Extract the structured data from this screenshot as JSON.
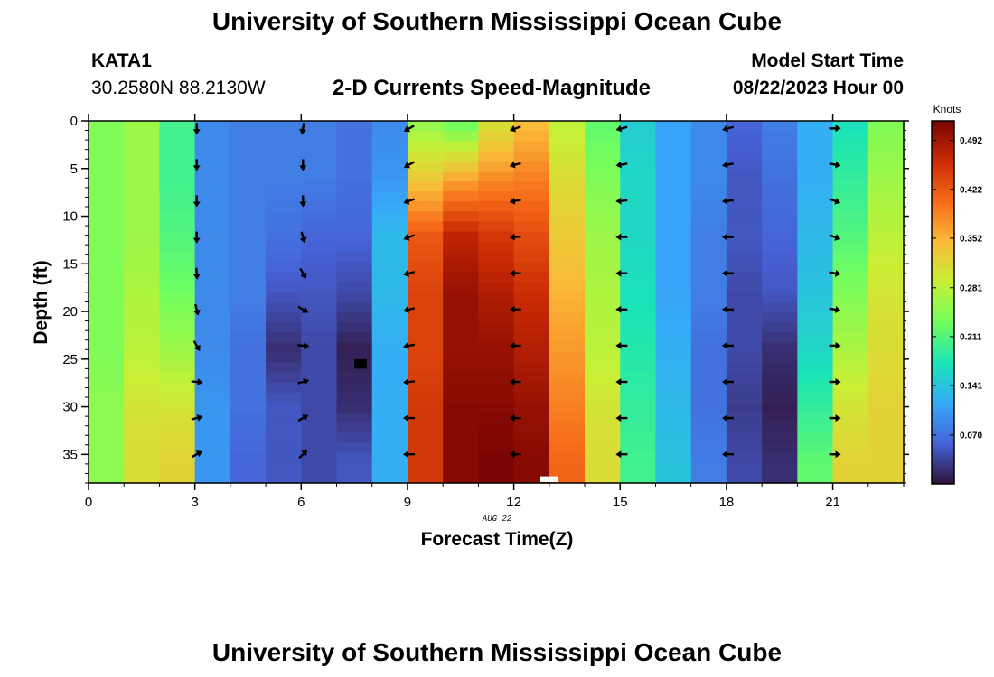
{
  "header": {
    "title": "University of Southern Mississippi Ocean Cube",
    "station_name": "KATA1",
    "station_coords": "30.2580N  88.2130W",
    "plot_subtitle": "2-D Currents Speed-Magnitude",
    "model_start_label": "Model Start Time",
    "model_start_value": "08/22/2023 Hour 00"
  },
  "footer": {
    "title": "University of Southern Mississippi Ocean Cube"
  },
  "chart_data": {
    "type": "heatmap",
    "title": "2-D Currents Speed-Magnitude",
    "xlabel": "Forecast Time(Z)",
    "ylabel": "Depth (ft)",
    "x_date_label": "AUG 22",
    "xlim": [
      0,
      23
    ],
    "ylim": [
      38,
      0
    ],
    "xticks": [
      0,
      3,
      6,
      9,
      12,
      15,
      18,
      21
    ],
    "yticks": [
      0,
      5,
      10,
      15,
      20,
      25,
      30,
      35
    ],
    "colorbar": {
      "label": "Knots",
      "min": 0.0,
      "max": 0.52,
      "tick_values": [
        0.492,
        0.422,
        0.352,
        0.281,
        0.211,
        0.141,
        0.07
      ]
    },
    "colors": {
      "scale": [
        "#30123b",
        "#4662d7",
        "#36aaf9",
        "#1ae4b6",
        "#72fe5e",
        "#c8ef34",
        "#faba39",
        "#f66b19",
        "#ca2a04",
        "#7a0403"
      ],
      "missing_dark": "#000000",
      "missing_light": "#ffffff"
    },
    "hours": [
      0,
      1,
      2,
      3,
      4,
      5,
      6,
      7,
      8,
      9,
      10,
      11,
      12,
      13,
      14,
      15,
      16,
      17,
      18,
      19,
      20,
      21,
      22
    ],
    "depth_levels": [
      0,
      6,
      12,
      18,
      24,
      30,
      36,
      38
    ],
    "speed_profiles": [
      [
        0.24,
        0.24,
        0.24,
        0.24,
        0.24,
        0.25,
        0.25,
        0.25
      ],
      [
        0.26,
        0.26,
        0.26,
        0.27,
        0.28,
        0.3,
        0.31,
        0.31
      ],
      [
        0.2,
        0.2,
        0.21,
        0.23,
        0.26,
        0.3,
        0.32,
        0.32
      ],
      [
        0.09,
        0.09,
        0.09,
        0.09,
        0.09,
        0.1,
        0.1,
        0.1
      ],
      [
        0.08,
        0.08,
        0.08,
        0.08,
        0.07,
        0.07,
        0.06,
        0.06
      ],
      [
        0.08,
        0.08,
        0.07,
        0.05,
        0.02,
        0.05,
        0.05,
        0.05
      ],
      [
        0.08,
        0.08,
        0.06,
        0.05,
        0.04,
        0.04,
        0.04,
        0.04
      ],
      [
        0.07,
        0.07,
        0.06,
        0.04,
        0.01,
        0.02,
        0.05,
        0.05
      ],
      [
        0.09,
        0.1,
        0.13,
        0.13,
        0.12,
        0.12,
        0.12,
        0.12
      ],
      [
        0.25,
        0.33,
        0.42,
        0.44,
        0.44,
        0.45,
        0.45,
        0.45
      ],
      [
        0.22,
        0.36,
        0.47,
        0.5,
        0.5,
        0.51,
        0.51,
        0.51
      ],
      [
        0.3,
        0.38,
        0.45,
        0.48,
        0.5,
        0.51,
        0.52,
        0.52
      ],
      [
        0.34,
        0.39,
        0.43,
        0.46,
        0.48,
        0.5,
        0.51,
        0.51
      ],
      [
        0.28,
        0.31,
        0.33,
        0.35,
        0.37,
        0.39,
        0.41,
        0.41
      ],
      [
        0.22,
        0.24,
        0.26,
        0.27,
        0.28,
        0.3,
        0.31,
        0.31
      ],
      [
        0.15,
        0.16,
        0.16,
        0.17,
        0.18,
        0.19,
        0.2,
        0.2
      ],
      [
        0.11,
        0.11,
        0.11,
        0.11,
        0.12,
        0.13,
        0.14,
        0.14
      ],
      [
        0.09,
        0.09,
        0.08,
        0.08,
        0.07,
        0.07,
        0.08,
        0.08
      ],
      [
        0.06,
        0.05,
        0.05,
        0.04,
        0.04,
        0.03,
        0.04,
        0.04
      ],
      [
        0.08,
        0.07,
        0.06,
        0.05,
        0.02,
        0.01,
        0.02,
        0.02
      ],
      [
        0.12,
        0.12,
        0.13,
        0.14,
        0.16,
        0.19,
        0.22,
        0.22
      ],
      [
        0.17,
        0.19,
        0.21,
        0.24,
        0.27,
        0.3,
        0.32,
        0.32
      ],
      [
        0.24,
        0.26,
        0.28,
        0.3,
        0.31,
        0.32,
        0.32,
        0.32
      ]
    ],
    "missing_cells": [
      {
        "type": "dark",
        "x0": 7.5,
        "x1": 7.85,
        "y0": 25.0,
        "y1": 26.0
      },
      {
        "type": "light",
        "x0": 12.75,
        "x1": 13.25,
        "y0": 37.3,
        "y1": 37.9
      }
    ],
    "arrow_hours": [
      3,
      6,
      9,
      12,
      15,
      18,
      21
    ],
    "arrow_depths": [
      0.5,
      4.3,
      8.1,
      11.9,
      15.7,
      19.5,
      23.3,
      27.1,
      30.9,
      34.7
    ],
    "arrow_directions_deg": [
      [
        180,
        180,
        180,
        180,
        175,
        165,
        150,
        95,
        75,
        60
      ],
      [
        190,
        180,
        180,
        165,
        150,
        120,
        95,
        75,
        60,
        45
      ],
      [
        240,
        240,
        250,
        250,
        255,
        255,
        260,
        265,
        270,
        270
      ],
      [
        250,
        255,
        260,
        265,
        270,
        270,
        270,
        270,
        270,
        270
      ],
      [
        255,
        260,
        265,
        270,
        270,
        270,
        270,
        270,
        270,
        270
      ],
      [
        255,
        260,
        265,
        270,
        270,
        270,
        270,
        270,
        270,
        270
      ],
      [
        90,
        100,
        110,
        110,
        100,
        100,
        90,
        90,
        90,
        90
      ]
    ]
  }
}
